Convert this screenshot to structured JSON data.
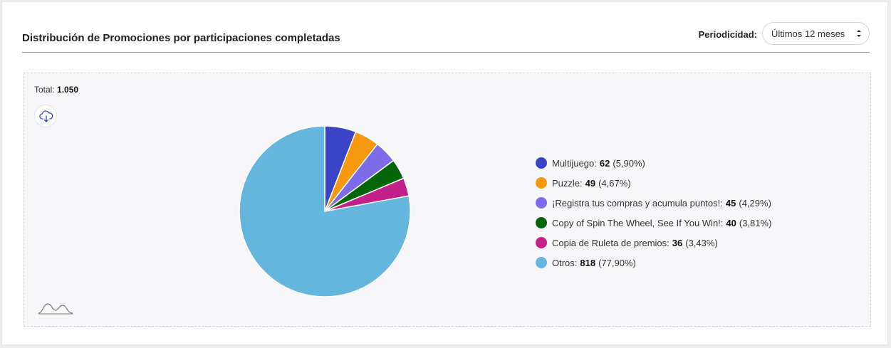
{
  "header": {
    "title": "Distribución de Promociones por participaciones completadas",
    "period_label": "Periodicidad:",
    "period_value": "Últimos 12 meses"
  },
  "total_label": "Total:",
  "total_value": "1.050",
  "icons": {
    "download": "cloud-download-icon",
    "distribution": "distribution-wave-icon"
  },
  "chart_data": {
    "type": "pie",
    "total": 1050,
    "slices": [
      {
        "name": "Multijuego",
        "value": 62,
        "value_text": "62",
        "percent_text": "(5,90%)",
        "color": "#3b44c6"
      },
      {
        "name": "Puzzle",
        "value": 49,
        "value_text": "49",
        "percent_text": "(4,67%)",
        "color": "#f7990f"
      },
      {
        "name": "¡Registra tus compras y acumula puntos!",
        "value": 45,
        "value_text": "45",
        "percent_text": "(4,29%)",
        "color": "#7d6bea"
      },
      {
        "name": "Copy of Spin The Wheel, See If You Win!",
        "value": 40,
        "value_text": "40",
        "percent_text": "(3,81%)",
        "color": "#04650a"
      },
      {
        "name": "Copia de Ruleta de premios",
        "value": 36,
        "value_text": "36",
        "percent_text": "(3,43%)",
        "color": "#c32189"
      },
      {
        "name": "Otros",
        "value": 818,
        "value_text": "818",
        "percent_text": "(77,90%)",
        "color": "#65b6dc"
      }
    ],
    "legend_placement": "right"
  }
}
